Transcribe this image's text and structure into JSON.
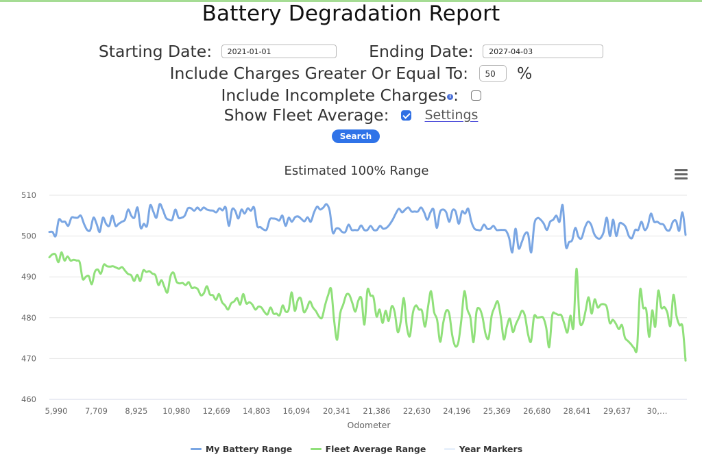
{
  "page": {
    "title": "Battery Degradation Report",
    "accent_color": "#a5dc94"
  },
  "form": {
    "starting_date_label": "Starting Date:",
    "starting_date_value": "2021-01-01",
    "ending_date_label": "Ending Date:",
    "ending_date_value": "2027-04-03",
    "min_charge_label": "Include Charges Greater Or Equal To:",
    "min_charge_value": "50",
    "min_charge_unit": "%",
    "incomplete_label": "Include Incomplete Charges",
    "incomplete_info_icon": "i",
    "incomplete_suffix": ":",
    "incomplete_checked": false,
    "fleet_label": "Show Fleet Average:",
    "fleet_checked": true,
    "settings_link": "Settings",
    "search_button": "Search",
    "button_color": "#2f73e8"
  },
  "chart_data": {
    "type": "line",
    "title": "Estimated 100% Range",
    "xlabel": "Odometer",
    "ylabel": "",
    "ylim": [
      460,
      510
    ],
    "yticks": [
      "510",
      "500",
      "490",
      "480",
      "470",
      "460"
    ],
    "ytick_values": [
      510,
      500,
      490,
      480,
      470,
      460
    ],
    "xtick_labels": [
      "5,990",
      "7,709",
      "8,925",
      "10,980",
      "12,669",
      "14,803",
      "16,094",
      "20,341",
      "21,386",
      "22,630",
      "24,196",
      "25,369",
      "26,680",
      "28,641",
      "29,637",
      "30,…"
    ],
    "grid": true,
    "legend_position": "bottom",
    "menu_icon": "hamburger-menu",
    "series": [
      {
        "name": "My Battery Range",
        "color": "#7aa6e3",
        "values": [
          501,
          501,
          500,
          504,
          503.5,
          503.5,
          502.5,
          504.5,
          504.5,
          504.5,
          505,
          503,
          501.5,
          501.5,
          504.5,
          503,
          501,
          504.5,
          503,
          502.5,
          505,
          502.5,
          503,
          503.5,
          504,
          506.5,
          505,
          504.5,
          507,
          502,
          503,
          502.5,
          507.5,
          506,
          504.5,
          507.8,
          506.5,
          504.5,
          504,
          504,
          506.5,
          504.5,
          504.5,
          505,
          506.8,
          506.8,
          506.2,
          507,
          506.3,
          507,
          506.5,
          506.3,
          506.2,
          505.8,
          506.8,
          506.3,
          507,
          502.5,
          506.5,
          506.2,
          504.3,
          506.5,
          505.5,
          506.8,
          506.2,
          507,
          502.5,
          502.2,
          501.6,
          501.6,
          504.1,
          504.3,
          504.2,
          503.8,
          505,
          502.5,
          504.5,
          503.5,
          504.6,
          504.8,
          504.2,
          503.6,
          504.6,
          503.5,
          505.7,
          507.2,
          506.5,
          507,
          507.8,
          506.2,
          500.8,
          501.8,
          501.8,
          501,
          501,
          502.8,
          501.5,
          501.5,
          501.5,
          502.6,
          501.5,
          501.5,
          502.5,
          501.5,
          501.5,
          502.5,
          501.8,
          502,
          502.8,
          504,
          505.5,
          506.7,
          505.8,
          506.5,
          507,
          506,
          506,
          506,
          507,
          505.8,
          504,
          505.8,
          506.5,
          502,
          505.8,
          506.5,
          505.8,
          503.5,
          506.3,
          506,
          503,
          506,
          505.5,
          506.7,
          503.5,
          501.8,
          501.5,
          501.5,
          502.8,
          501.8,
          501.8,
          502.5,
          501.5,
          501.5,
          501.5,
          501.3,
          499.5,
          496,
          501.8,
          497,
          498.5,
          500.5,
          500.5,
          496,
          503,
          504.4,
          504,
          503,
          501.5,
          503.5,
          504,
          505,
          503.5,
          507.5,
          497.5,
          498.5,
          499,
          502,
          499.8,
          499.5,
          502,
          503.5,
          502.8,
          500.5,
          499.5,
          499.5,
          501,
          504.5,
          500,
          504,
          500,
          503,
          503,
          502.2,
          500,
          499.5,
          501.5,
          501.5,
          503.5,
          501.5,
          502.5,
          505.5,
          503.5,
          503.5,
          503,
          502.8,
          501.5,
          501.5,
          503.5,
          503.7,
          501.3,
          505.8,
          500.3
        ]
      },
      {
        "name": "Fleet Average Range",
        "color": "#90e07a",
        "values": [
          494.8,
          495.5,
          495.5,
          493.6,
          496,
          494,
          495,
          494,
          494.2,
          494,
          493.6,
          489.5,
          490,
          490.2,
          488.2,
          491.2,
          491.8,
          490.8,
          493,
          492.6,
          492.5,
          492.6,
          492.3,
          492,
          492.4,
          491.5,
          490.7,
          490.4,
          489,
          490.5,
          489,
          491.6,
          491.2,
          491.4,
          490.8,
          490.4,
          488,
          489.2,
          487.5,
          486.2,
          490.2,
          491,
          488.8,
          488.4,
          488.5,
          488,
          488.7,
          487.3,
          487.4,
          487,
          485.5,
          486,
          487.7,
          485.7,
          485.5,
          484.4,
          485.8,
          483.8,
          483,
          482,
          483.5,
          484,
          484.8,
          483.2,
          485.8,
          483.5,
          483.8,
          483.2,
          482,
          482.7,
          482.5,
          481.4,
          480.8,
          482.5,
          481,
          481,
          480.6,
          483,
          481.5,
          482,
          486.2,
          481.7,
          484.3,
          484.7,
          481.4,
          482.3,
          484,
          482.5,
          481.6,
          480.3,
          480,
          483,
          485.5,
          487,
          479.3,
          474.6,
          481,
          483.2,
          485.6,
          485.6,
          483.6,
          481.5,
          484.2,
          484.7,
          478.3,
          486.8,
          485.4,
          485,
          480.3,
          482,
          478.7,
          481.7,
          479.2,
          482.8,
          481.3,
          476.5,
          479.1,
          484.8,
          477.8,
          475.5,
          481.2,
          483,
          482,
          481.7,
          477.8,
          482.7,
          486.5,
          481.4,
          479.5,
          474.1,
          478.7,
          481.7,
          481,
          475.7,
          473,
          474,
          479.5,
          486.5,
          482,
          480,
          474,
          481.5,
          482.2,
          480.1,
          476,
          475,
          480.5,
          482.6,
          484,
          480.3,
          474.7,
          477.8,
          479.8,
          476.5,
          478.4,
          480,
          481.7,
          480.4,
          476,
          474.2,
          480.3,
          480,
          480.1,
          480,
          477.6,
          472.8,
          480.6,
          481,
          480.7,
          480.6,
          478.5,
          476.4,
          480.5,
          477.6,
          492,
          479.6,
          478.6,
          481.7,
          485,
          481,
          484.5,
          482.5,
          483.2,
          483.3,
          482.6,
          478.7,
          479.5,
          478.5,
          477.2,
          478.2,
          475.1,
          474.3,
          473.5,
          472.6,
          472.6,
          486.8,
          482.5,
          482,
          475.3,
          481.8,
          477.8,
          486.6,
          482.5,
          482.6,
          481.2,
          478,
          485.6,
          480.5,
          478.2,
          477.8,
          469.5
        ]
      },
      {
        "name": "Year Markers",
        "color": "#a9c8f0",
        "values": []
      }
    ]
  }
}
